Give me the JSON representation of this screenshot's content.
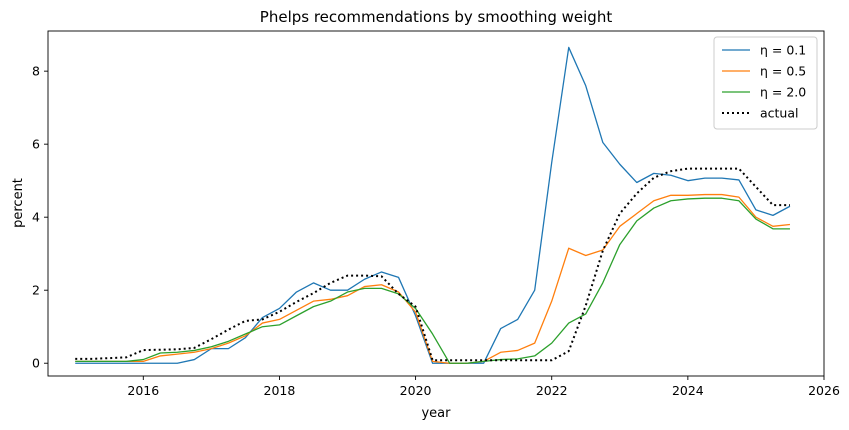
{
  "chart_data": {
    "type": "line",
    "title": "Phelps recommendations by smoothing weight",
    "xlabel": "year",
    "ylabel": "percent",
    "xlim": [
      2014.6,
      2026.0
    ],
    "ylim": [
      -0.35,
      9.1
    ],
    "xticks": [
      2016,
      2018,
      2020,
      2022,
      2024,
      2026
    ],
    "yticks": [
      0,
      2,
      4,
      6,
      8
    ],
    "grid": false,
    "legend_position": "top-right",
    "x": [
      2015.0,
      2015.25,
      2015.5,
      2015.75,
      2016.0,
      2016.25,
      2016.5,
      2016.75,
      2017.0,
      2017.25,
      2017.5,
      2017.75,
      2018.0,
      2018.25,
      2018.5,
      2018.75,
      2019.0,
      2019.25,
      2019.5,
      2019.75,
      2020.0,
      2020.25,
      2020.5,
      2020.75,
      2021.0,
      2021.25,
      2021.5,
      2021.75,
      2022.0,
      2022.25,
      2022.5,
      2022.75,
      2023.0,
      2023.25,
      2023.5,
      2023.75,
      2024.0,
      2024.25,
      2024.5,
      2024.75,
      2025.0,
      2025.25,
      2025.5
    ],
    "series": [
      {
        "name": "η = 0.1",
        "color": "#1f77b4",
        "style": "solid",
        "values": [
          0.0,
          0.0,
          0.0,
          0.0,
          0.0,
          0.0,
          0.0,
          0.1,
          0.4,
          0.4,
          0.7,
          1.25,
          1.5,
          1.95,
          2.2,
          2.0,
          2.0,
          2.3,
          2.5,
          2.35,
          1.3,
          0.0,
          0.0,
          0.0,
          0.0,
          0.95,
          1.2,
          2.0,
          5.5,
          8.65,
          7.6,
          6.05,
          5.45,
          4.95,
          5.2,
          5.15,
          5.0,
          5.07,
          5.07,
          5.02,
          4.2,
          4.05,
          4.3
        ]
      },
      {
        "name": "η = 0.5",
        "color": "#ff7f0e",
        "style": "solid",
        "values": [
          0.05,
          0.05,
          0.05,
          0.05,
          0.05,
          0.2,
          0.25,
          0.3,
          0.4,
          0.55,
          0.75,
          1.1,
          1.2,
          1.45,
          1.7,
          1.75,
          1.85,
          2.1,
          2.15,
          1.95,
          1.4,
          0.05,
          0.0,
          0.0,
          0.05,
          0.3,
          0.35,
          0.55,
          1.7,
          3.15,
          2.95,
          3.1,
          3.75,
          4.1,
          4.45,
          4.6,
          4.6,
          4.62,
          4.62,
          4.55,
          4.0,
          3.75,
          3.8
        ]
      },
      {
        "name": "η = 2.0",
        "color": "#2ca02c",
        "style": "solid",
        "values": [
          0.05,
          0.05,
          0.05,
          0.05,
          0.1,
          0.28,
          0.3,
          0.35,
          0.45,
          0.6,
          0.8,
          1.0,
          1.05,
          1.3,
          1.55,
          1.7,
          1.95,
          2.05,
          2.05,
          1.9,
          1.5,
          0.8,
          0.0,
          0.0,
          0.05,
          0.1,
          0.12,
          0.2,
          0.55,
          1.1,
          1.35,
          2.2,
          3.25,
          3.9,
          4.25,
          4.45,
          4.5,
          4.52,
          4.52,
          4.45,
          3.95,
          3.68,
          3.68
        ]
      },
      {
        "name": "actual",
        "color": "#000000",
        "style": "dotted",
        "values": [
          0.12,
          0.12,
          0.14,
          0.16,
          0.36,
          0.37,
          0.38,
          0.42,
          0.66,
          0.92,
          1.16,
          1.2,
          1.41,
          1.68,
          1.92,
          2.2,
          2.4,
          2.4,
          2.38,
          1.9,
          1.55,
          0.08,
          0.08,
          0.08,
          0.08,
          0.08,
          0.08,
          0.08,
          0.08,
          0.33,
          1.58,
          3.08,
          4.1,
          4.65,
          5.08,
          5.26,
          5.33,
          5.33,
          5.33,
          5.33,
          4.83,
          4.33,
          4.33
        ]
      }
    ]
  }
}
